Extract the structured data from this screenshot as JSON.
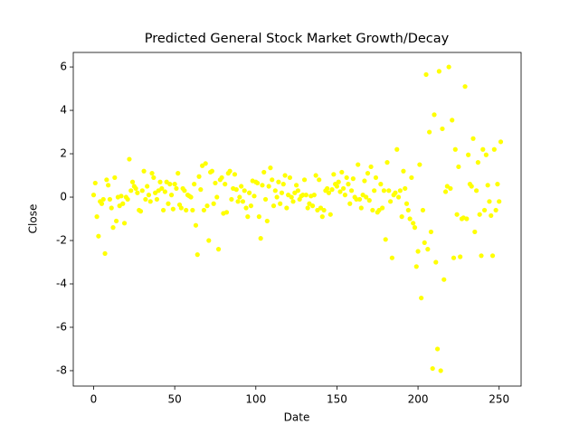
{
  "chart_data": {
    "type": "scatter",
    "title": "Predicted General Stock Market Growth/Decay",
    "x_label": "Date",
    "y_label": "Close",
    "color": "#ffff00",
    "xlim": [
      -12.55,
      263.55
    ],
    "ylim": [
      -8.71,
      6.67
    ],
    "xticks": [
      0,
      50,
      100,
      150,
      200,
      250
    ],
    "yticks": [
      -8,
      -6,
      -4,
      -2,
      0,
      2,
      4,
      6
    ],
    "x": [
      0,
      1,
      2,
      3,
      4,
      5,
      6,
      7,
      8,
      9,
      10,
      11,
      12,
      13,
      14,
      15,
      16,
      17,
      18,
      19,
      20,
      21,
      22,
      23,
      24,
      25,
      26,
      27,
      28,
      29,
      30,
      31,
      32,
      33,
      34,
      35,
      36,
      37,
      38,
      39,
      40,
      41,
      42,
      43,
      44,
      45,
      46,
      47,
      48,
      49,
      50,
      51,
      52,
      53,
      54,
      55,
      56,
      57,
      58,
      59,
      60,
      61,
      62,
      63,
      64,
      65,
      66,
      67,
      68,
      69,
      70,
      71,
      72,
      73,
      74,
      75,
      76,
      77,
      78,
      79,
      80,
      81,
      82,
      83,
      84,
      85,
      86,
      87,
      88,
      89,
      90,
      91,
      92,
      93,
      94,
      95,
      96,
      97,
      98,
      99,
      100,
      101,
      102,
      103,
      104,
      105,
      106,
      107,
      108,
      109,
      110,
      111,
      112,
      113,
      114,
      115,
      116,
      117,
      118,
      119,
      120,
      121,
      122,
      123,
      124,
      125,
      126,
      127,
      128,
      129,
      130,
      131,
      132,
      133,
      134,
      135,
      136,
      137,
      138,
      139,
      140,
      141,
      142,
      143,
      144,
      145,
      146,
      147,
      148,
      149,
      150,
      151,
      152,
      153,
      154,
      155,
      156,
      157,
      158,
      159,
      160,
      161,
      162,
      163,
      164,
      165,
      166,
      167,
      168,
      169,
      170,
      171,
      172,
      173,
      174,
      175,
      176,
      177,
      178,
      179,
      180,
      181,
      182,
      183,
      184,
      185,
      186,
      187,
      188,
      189,
      190,
      191,
      192,
      193,
      194,
      195,
      196,
      197,
      198,
      199,
      200,
      201,
      202,
      203,
      204,
      205,
      206,
      207,
      208,
      209,
      210,
      211,
      212,
      213,
      214,
      215,
      216,
      217,
      218,
      219,
      220,
      221,
      222,
      223,
      224,
      225,
      226,
      227,
      228,
      229,
      230,
      231,
      232,
      233,
      234,
      235,
      236,
      237,
      238,
      239,
      240,
      241,
      242,
      243,
      244,
      245,
      246,
      247,
      248,
      249,
      250,
      251
    ],
    "values": [
      0.1,
      0.65,
      -0.9,
      -1.8,
      -0.2,
      -0.3,
      -0.1,
      -2.6,
      0.8,
      0.55,
      -0.1,
      -0.5,
      -1.4,
      0.9,
      -1.1,
      0.0,
      -0.4,
      0.05,
      -0.3,
      -1.2,
      0.0,
      -0.1,
      1.75,
      0.3,
      0.7,
      0.5,
      0.4,
      0.2,
      -0.6,
      -0.65,
      0.3,
      1.2,
      -0.1,
      0.5,
      0.1,
      -0.2,
      1.1,
      0.9,
      0.2,
      -0.1,
      0.3,
      0.7,
      0.4,
      -0.6,
      0.25,
      0.7,
      -0.3,
      0.6,
      0.1,
      -0.55,
      0.6,
      0.4,
      1.1,
      -0.35,
      -0.5,
      0.4,
      0.3,
      -0.6,
      0.1,
      0.05,
      0.0,
      -0.6,
      0.6,
      -1.3,
      -2.65,
      0.95,
      0.35,
      1.45,
      -0.6,
      1.55,
      -0.4,
      -2.0,
      1.15,
      1.2,
      -0.3,
      0.65,
      0.0,
      -2.4,
      0.8,
      0.9,
      -0.75,
      0.6,
      -0.7,
      1.1,
      1.2,
      -0.1,
      0.4,
      1.05,
      0.35,
      -0.2,
      0.0,
      0.5,
      -0.2,
      0.3,
      -0.5,
      -0.9,
      0.2,
      -0.4,
      0.75,
      0.05,
      0.7,
      0.65,
      -0.9,
      -1.9,
      0.55,
      1.15,
      -0.1,
      -1.1,
      0.5,
      1.35,
      0.8,
      -0.4,
      0.3,
      0.0,
      0.7,
      -0.3,
      0.2,
      0.6,
      1.0,
      -0.5,
      0.1,
      0.9,
      0.0,
      -0.2,
      0.2,
      0.55,
      0.3,
      -0.1,
      0.05,
      0.1,
      0.8,
      0.1,
      -0.5,
      -0.3,
      0.05,
      -0.4,
      0.1,
      1.0,
      -0.6,
      0.8,
      -0.5,
      -0.9,
      -0.6,
      0.3,
      0.4,
      0.2,
      -0.8,
      0.35,
      1.05,
      0.6,
      0.5,
      0.7,
      0.25,
      1.15,
      0.4,
      0.1,
      0.9,
      0.6,
      -0.3,
      0.3,
      0.85,
      0.0,
      -0.1,
      1.5,
      -0.1,
      -0.5,
      0.1,
      0.75,
      0.0,
      1.1,
      -0.15,
      1.4,
      -0.6,
      0.3,
      0.9,
      -0.7,
      -0.6,
      0.6,
      -0.5,
      0.3,
      -1.95,
      1.6,
      0.3,
      -0.2,
      -2.8,
      0.1,
      0.2,
      2.2,
      0.0,
      0.3,
      -0.9,
      1.2,
      0.4,
      -0.3,
      -0.6,
      -1.0,
      0.9,
      -1.2,
      -1.4,
      -3.2,
      -2.5,
      1.5,
      -4.65,
      -0.6,
      -2.1,
      5.65,
      -2.4,
      3.0,
      -1.6,
      -7.9,
      3.8,
      -3.0,
      -7.0,
      5.8,
      -8.0,
      3.15,
      -3.8,
      0.25,
      0.5,
      6.0,
      0.4,
      3.55,
      -2.8,
      2.2,
      -0.8,
      1.4,
      -2.75,
      -1.0,
      -0.95,
      5.1,
      -1.0,
      1.95,
      0.6,
      0.5,
      2.7,
      -1.6,
      0.3,
      1.6,
      -0.8,
      -2.7,
      2.2,
      -0.6,
      1.95,
      0.55,
      -0.2,
      -0.85,
      -2.7,
      2.2,
      -0.6,
      0.6,
      -0.2,
      2.55
    ]
  }
}
